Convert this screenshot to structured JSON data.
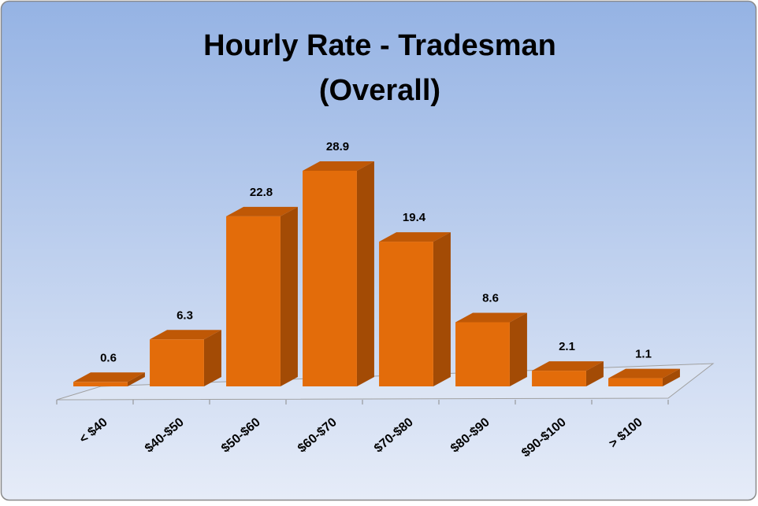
{
  "chart_data": {
    "type": "bar3d",
    "title": [
      "Hourly Rate - Tradesman",
      "(Overall)"
    ],
    "categories": [
      "< $40",
      "$40-$50",
      "$50-$60",
      "$60-$70",
      "$70-$80",
      "$80-$90",
      "$90-$100",
      "> $100"
    ],
    "values": [
      0.6,
      6.3,
      22.8,
      28.9,
      19.4,
      8.6,
      2.1,
      1.1
    ],
    "color": "#e36c0a"
  }
}
